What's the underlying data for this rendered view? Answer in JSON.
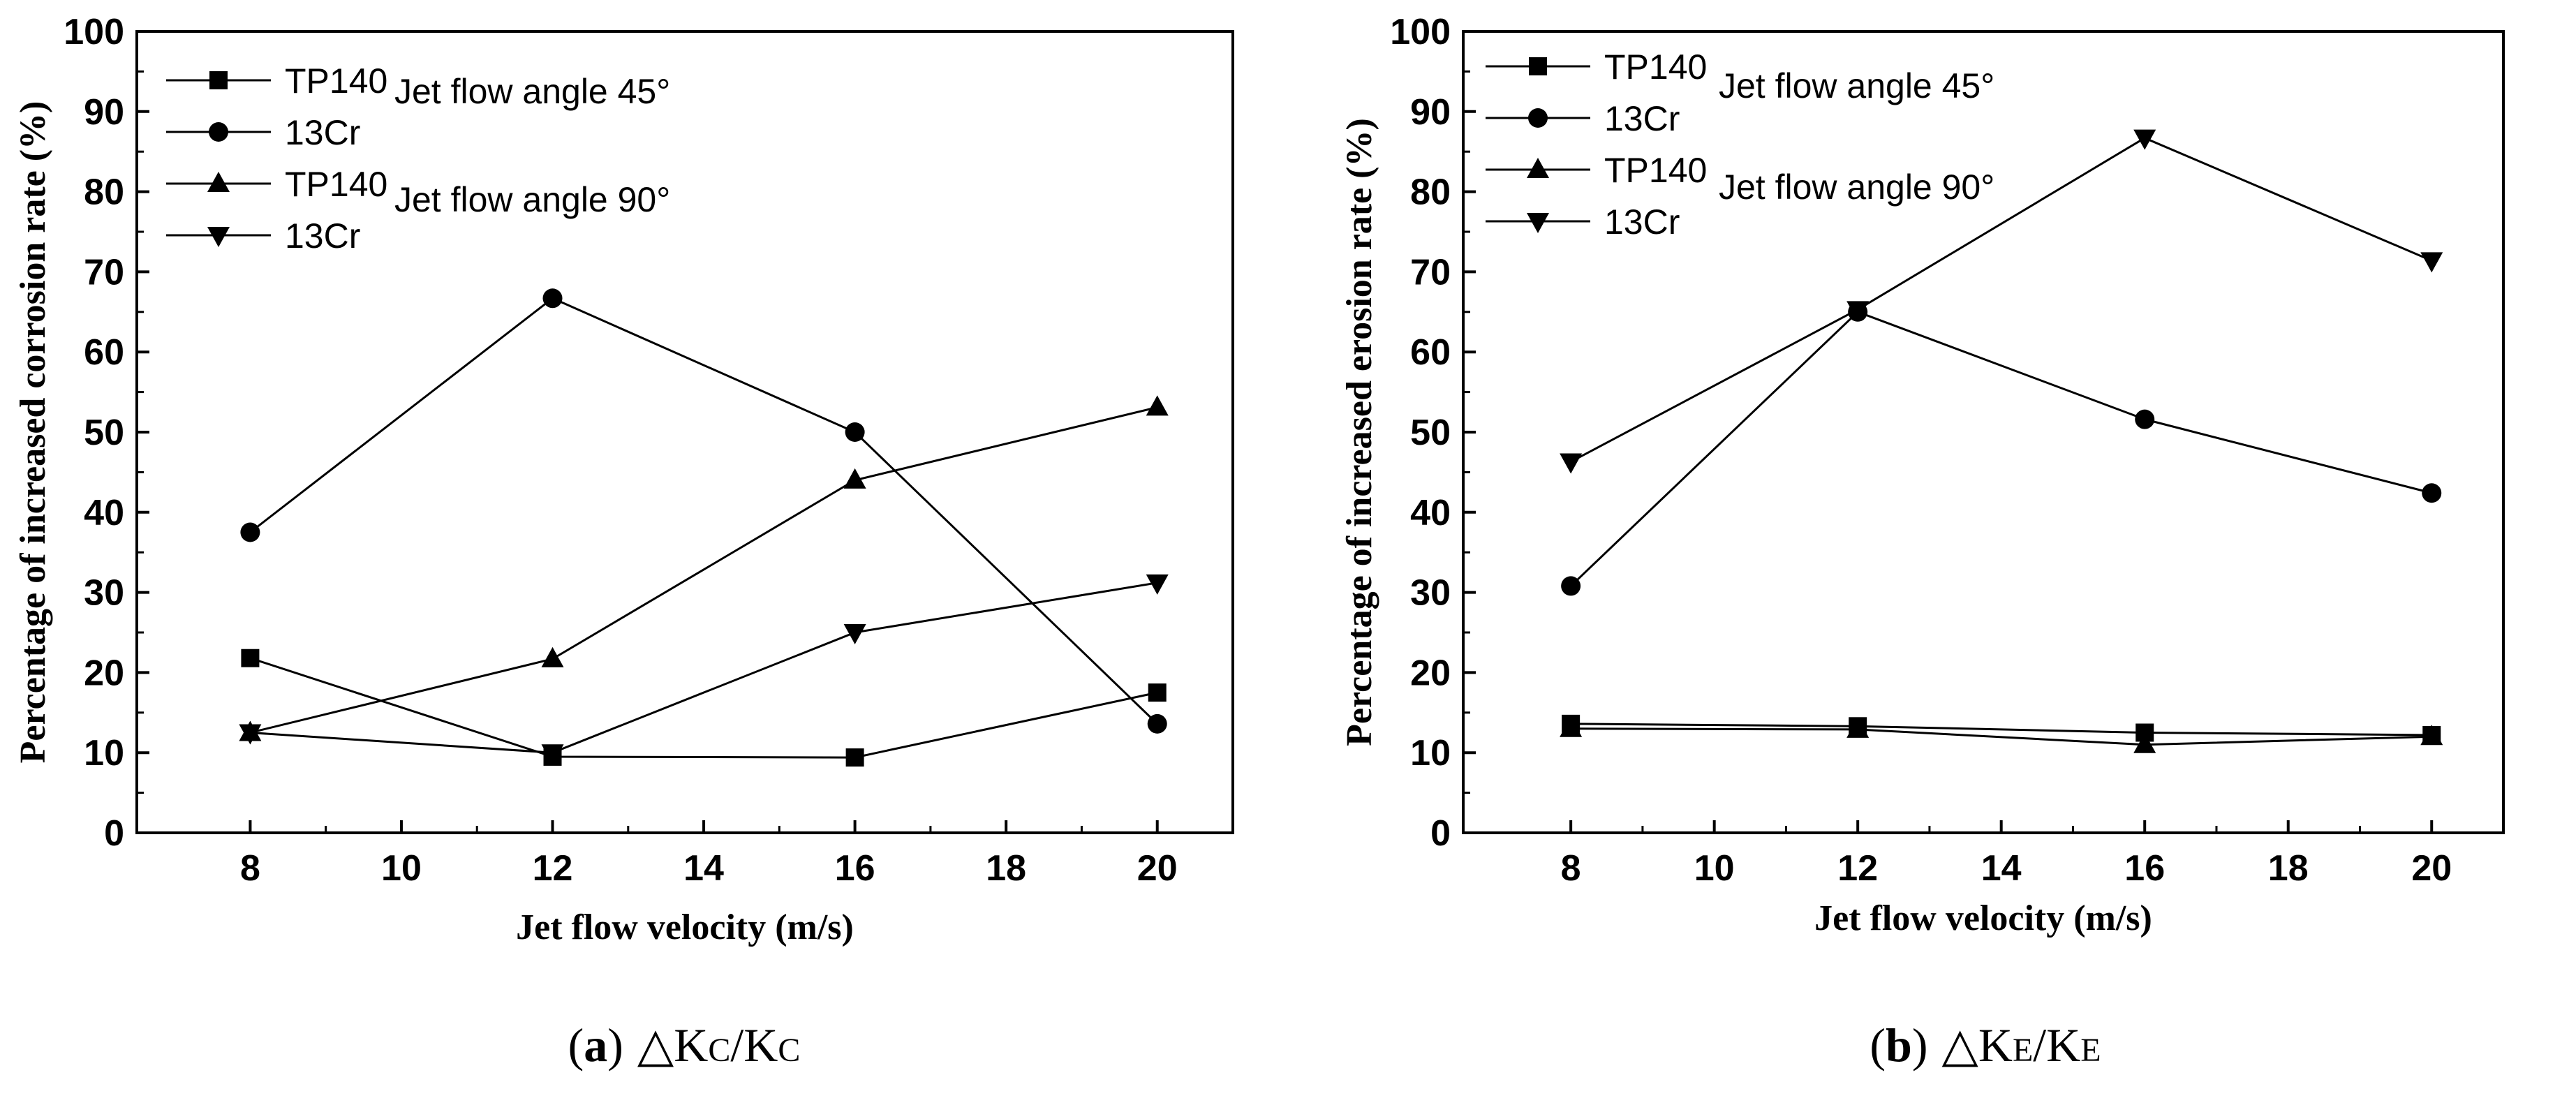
{
  "chart_data": [
    {
      "type": "line",
      "caption": {
        "open": "(",
        "letter": "a",
        "close": ")",
        "delta": "△",
        "K1": "K",
        "sub1": "C",
        "slash": "/",
        "K2": "K",
        "sub2": "C"
      },
      "xlabel": "Jet flow velocity (m/s)",
      "ylabel": "Percentage of increased corrosion rate (%)",
      "xlim": [
        6.5,
        21
      ],
      "ylim": [
        0,
        100
      ],
      "xticks": [
        "8",
        "10",
        "12",
        "14",
        "16",
        "18",
        "20"
      ],
      "yticks": [
        "0",
        "10",
        "20",
        "30",
        "40",
        "50",
        "60",
        "70",
        "80",
        "90",
        "100"
      ],
      "x": [
        8,
        12,
        16,
        20
      ],
      "series": [
        {
          "name": "TP140",
          "marker": "square",
          "values": [
            21.8,
            9.5,
            9.4,
            17.5
          ]
        },
        {
          "name": "13Cr",
          "marker": "circle",
          "values": [
            37.5,
            66.7,
            50.0,
            13.6
          ]
        },
        {
          "name": "TP140",
          "marker": "triangle-up",
          "values": [
            12.5,
            21.7,
            44.0,
            53.1
          ]
        },
        {
          "name": "13Cr",
          "marker": "triangle-down",
          "values": [
            12.5,
            10.0,
            25.0,
            31.2
          ]
        }
      ],
      "annotations": [
        "Jet flow angle 45°",
        "Jet flow angle 90°"
      ],
      "legend_position": "top-left"
    },
    {
      "type": "line",
      "caption": {
        "open": "(",
        "letter": "b",
        "close": ")",
        "delta": "△",
        "K1": "K",
        "sub1": "E",
        "slash": "/",
        "K2": "K",
        "sub2": "E"
      },
      "xlabel": "Jet flow velocity (m/s)",
      "ylabel": "Percentage of increased erosion rate (%)",
      "xlim": [
        6.5,
        21
      ],
      "ylim": [
        0,
        100
      ],
      "xticks": [
        "8",
        "10",
        "12",
        "14",
        "16",
        "18",
        "20"
      ],
      "yticks": [
        "0",
        "10",
        "20",
        "30",
        "40",
        "50",
        "60",
        "70",
        "80",
        "90",
        "100"
      ],
      "x": [
        8,
        12,
        16,
        20
      ],
      "series": [
        {
          "name": "TP140",
          "marker": "square",
          "values": [
            13.6,
            13.3,
            12.5,
            12.2
          ]
        },
        {
          "name": "13Cr",
          "marker": "circle",
          "values": [
            30.8,
            65.0,
            51.6,
            42.4
          ]
        },
        {
          "name": "TP140",
          "marker": "triangle-up",
          "values": [
            13.0,
            12.9,
            11.0,
            12.0
          ]
        },
        {
          "name": "13Cr",
          "marker": "triangle-down",
          "values": [
            46.3,
            65.3,
            86.7,
            71.4
          ]
        }
      ],
      "annotations": [
        "Jet flow angle 45°",
        "Jet flow angle 90°"
      ],
      "legend_position": "top-left"
    }
  ]
}
